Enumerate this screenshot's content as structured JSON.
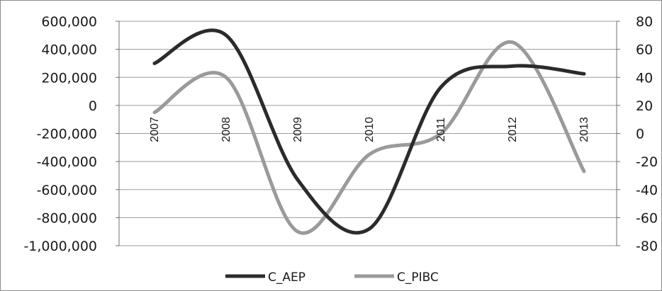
{
  "chart_data": {
    "type": "line",
    "categories": [
      "2007",
      "2008",
      "2009",
      "2010",
      "2011",
      "2012",
      "2013"
    ],
    "series": [
      {
        "name": "C_AEP",
        "axis": "left",
        "color": "#2b2b2b",
        "values": [
          300000,
          500000,
          -530000,
          -880000,
          130000,
          280000,
          225000
        ]
      },
      {
        "name": "C_PIBC",
        "axis": "right",
        "color": "#9a9a9a",
        "values": [
          15,
          40,
          -70,
          -15,
          0,
          65,
          -27
        ]
      }
    ],
    "y_left": {
      "min": -1000000,
      "max": 600000,
      "ticks": [
        "600,000",
        "400,000",
        "200,000",
        "0",
        "-200,000",
        "-400,000",
        "-600,000",
        "-800,000",
        "-1,000,000"
      ]
    },
    "y_right": {
      "min": -80,
      "max": 80,
      "ticks": [
        "80",
        "60",
        "40",
        "20",
        "0",
        "-20",
        "-40",
        "-60",
        "-80"
      ]
    },
    "title": "",
    "xlabel": "",
    "ylabel": "",
    "grid": true,
    "legend_position": "bottom"
  }
}
